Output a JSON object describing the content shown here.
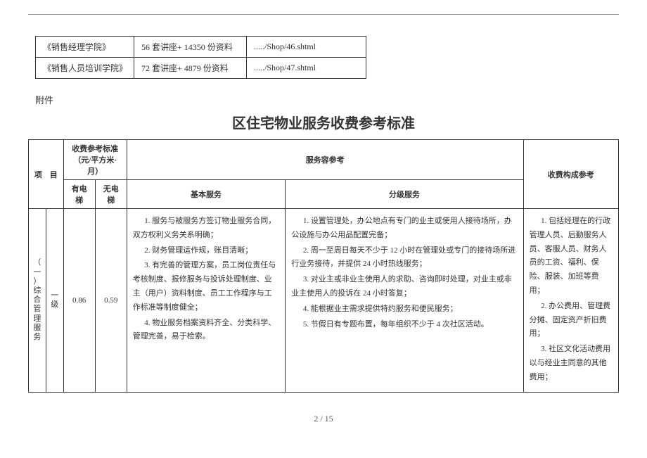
{
  "topTable": {
    "rows": [
      {
        "c1": "《销售经理学院》",
        "c2": "56 套讲座+ 14350 份资料",
        "c3": "...../Shop/46.shtml"
      },
      {
        "c1": "《销售人员培训学院》",
        "c2": "72 套讲座+ 4879 份资料",
        "c3": "...../Shop/47.shtml"
      }
    ]
  },
  "attachment_label": "附件",
  "main_title": "区住宅物业服务收费参考标准",
  "headers": {
    "project": "项　目",
    "fee_std": "收费参考标准（元/平方米·月）",
    "service_ref": "服务容参考",
    "cost_ref": "收费构成参考",
    "with_elev": "有电梯",
    "no_elev": "无电梯",
    "basic": "基本服务",
    "graded": "分级服务"
  },
  "row": {
    "cat_label": "（一）综合管理服务",
    "level": "一级",
    "with_elev": "0.86",
    "no_elev": "0.59",
    "basic": [
      "1. 服务与被服务方签订物业服务合同，双方权利义务关系明确；",
      "2. 财务管理运作规，账目清晰；",
      "3. 有完善的管理方案，员工岗位责任与考核制度、报修服务与投诉处理制度、业主（用户）资料制度、员工工作程序与工作标准等制度健全；",
      "4. 物业服务档案资料齐全、分类科学、管理完善，易于检索。"
    ],
    "graded": [
      "1. 设置管理处，办公地点有专门的业主或使用人接待场所，办公设施与办公用品配置完备；",
      "2. 周一至周日每天不少于 12 小时在管理处或专门的接待场所进行业务接待，并提供 24 小时热线服务；",
      "3. 对业主或非业主使用人的求助、咨询即时处理，对业主或非业主使用人的投诉在 24 小时答复；",
      "4. 能根据业主需求提供特约服务和便民服务；",
      "5. 节假日有专题布置，每年组织不少于 4 次社区活动。"
    ],
    "cost": [
      "1. 包括经理在的行政管理人员、后勤服务人员、客服人员、财务人员的工资、福利、保险、服装、加班等费用；",
      "2. 办公费用、管理费分摊、固定资产折旧费用；",
      "3. 社区文化活动费用以与经业主同意的其他费用；"
    ]
  },
  "page": "2 / 15"
}
